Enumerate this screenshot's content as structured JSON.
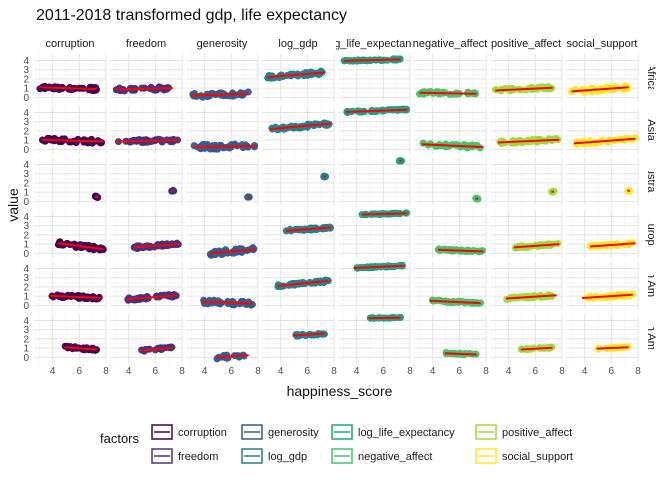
{
  "chart_data": {
    "type": "scatter",
    "title": "2011-2018 transformed gdp, life expectancy",
    "xlabel": "happiness_score",
    "ylabel": "value",
    "xlim": [
      2.6,
      8.0
    ],
    "ylim": [
      -0.5,
      4.7
    ],
    "x_ticks": [
      4,
      6,
      8
    ],
    "y_ticks": [
      0,
      1,
      2,
      3,
      4
    ],
    "grid": true,
    "facet_columns": [
      "corruption",
      "freedom",
      "generosity",
      "log_gdp",
      "log_life_expectancy",
      "negative_affect",
      "positive_affect",
      "social_support"
    ],
    "facet_rows": [
      "Africa",
      "Asia",
      "Australia",
      "Europe",
      "North America",
      "South America"
    ],
    "legend": {
      "title": "factors",
      "position": "bottom",
      "entries": [
        {
          "name": "corruption",
          "color": "#440154"
        },
        {
          "name": "freedom",
          "color": "#46337E"
        },
        {
          "name": "generosity",
          "color": "#365C8D"
        },
        {
          "name": "log_gdp",
          "color": "#277F8E"
        },
        {
          "name": "log_life_expectancy",
          "color": "#1FA187"
        },
        {
          "name": "negative_affect",
          "color": "#4AC16D"
        },
        {
          "name": "positive_affect",
          "color": "#A0DA39"
        },
        {
          "name": "social_support",
          "color": "#FDE725"
        }
      ]
    },
    "fit_line_color": "#FF0000",
    "panels": {
      "Africa": {
        "x_range": [
          3.0,
          7.3
        ],
        "corruption": {
          "a": [
            3.0,
            1.1
          ],
          "b": [
            7.3,
            0.9
          ],
          "spread": 0.18
        },
        "freedom": {
          "a": [
            3.0,
            0.85
          ],
          "b": [
            7.3,
            1.0
          ],
          "spread": 0.18
        },
        "generosity": {
          "a": [
            3.0,
            0.2
          ],
          "b": [
            7.3,
            0.4
          ],
          "spread": 0.22
        },
        "log_gdp": {
          "a": [
            3.0,
            2.2
          ],
          "b": [
            7.3,
            2.7
          ],
          "spread": 0.18
        },
        "log_life_expectancy": {
          "a": [
            3.0,
            3.95
          ],
          "b": [
            7.3,
            4.12
          ],
          "spread": 0.08
        },
        "negative_affect": {
          "a": [
            3.0,
            0.5
          ],
          "b": [
            7.3,
            0.4
          ],
          "spread": 0.15
        },
        "positive_affect": {
          "a": [
            3.0,
            0.75
          ],
          "b": [
            7.3,
            1.05
          ],
          "spread": 0.17
        },
        "social_support": {
          "a": [
            3.0,
            0.65
          ],
          "b": [
            7.3,
            1.1
          ],
          "spread": 0.22
        }
      },
      "Asia": {
        "x_range": [
          3.2,
          7.8
        ],
        "corruption": {
          "a": [
            3.2,
            1.05
          ],
          "b": [
            7.8,
            0.85
          ],
          "spread": 0.22
        },
        "freedom": {
          "a": [
            3.2,
            0.85
          ],
          "b": [
            7.8,
            1.0
          ],
          "spread": 0.16
        },
        "generosity": {
          "a": [
            3.2,
            0.25
          ],
          "b": [
            7.8,
            0.35
          ],
          "spread": 0.28
        },
        "log_gdp": {
          "a": [
            3.2,
            2.2
          ],
          "b": [
            7.8,
            2.8
          ],
          "spread": 0.18
        },
        "log_life_expectancy": {
          "a": [
            3.2,
            4.05
          ],
          "b": [
            7.8,
            4.3
          ],
          "spread": 0.08
        },
        "negative_affect": {
          "a": [
            3.2,
            0.55
          ],
          "b": [
            7.8,
            0.25
          ],
          "spread": 0.17
        },
        "positive_affect": {
          "a": [
            3.2,
            0.75
          ],
          "b": [
            7.8,
            1.05
          ],
          "spread": 0.16
        },
        "social_support": {
          "a": [
            3.2,
            0.65
          ],
          "b": [
            7.8,
            1.15
          ],
          "spread": 0.18
        }
      },
      "Australia": {
        "x_range": [
          7.2,
          7.4
        ],
        "corruption": {
          "a": [
            7.2,
            0.5
          ],
          "b": [
            7.4,
            0.5
          ],
          "spread": 0.08
        },
        "freedom": {
          "a": [
            7.2,
            1.15
          ],
          "b": [
            7.4,
            1.15
          ],
          "spread": 0.06
        },
        "generosity": {
          "a": [
            7.2,
            0.45
          ],
          "b": [
            7.4,
            0.45
          ],
          "spread": 0.06
        },
        "log_gdp": {
          "a": [
            7.2,
            2.7
          ],
          "b": [
            7.4,
            2.7
          ],
          "spread": 0.06
        },
        "log_life_expectancy": {
          "a": [
            7.2,
            4.4
          ],
          "b": [
            7.4,
            4.4
          ],
          "spread": 0.04
        },
        "negative_affect": {
          "a": [
            7.2,
            0.3
          ],
          "b": [
            7.4,
            0.3
          ],
          "spread": 0.05
        },
        "positive_affect": {
          "a": [
            7.2,
            1.05
          ],
          "b": [
            7.4,
            1.05
          ],
          "spread": 0.05
        },
        "social_support": {
          "a": [
            7.2,
            1.15
          ],
          "b": [
            7.4,
            1.15
          ],
          "spread": 0.05
        }
      },
      "Europe": {
        "x_range": [
          4.4,
          7.8
        ],
        "corruption": {
          "a": [
            4.4,
            1.1
          ],
          "b": [
            7.8,
            0.45
          ],
          "spread": 0.2
        },
        "freedom": {
          "a": [
            4.4,
            0.65
          ],
          "b": [
            7.8,
            1.0
          ],
          "spread": 0.16
        },
        "generosity": {
          "a": [
            4.4,
            0.0
          ],
          "b": [
            7.8,
            0.45
          ],
          "spread": 0.25
        },
        "log_gdp": {
          "a": [
            4.4,
            2.45
          ],
          "b": [
            7.8,
            2.8
          ],
          "spread": 0.12
        },
        "log_life_expectancy": {
          "a": [
            4.4,
            4.2
          ],
          "b": [
            7.8,
            4.35
          ],
          "spread": 0.05
        },
        "negative_affect": {
          "a": [
            4.4,
            0.4
          ],
          "b": [
            7.8,
            0.2
          ],
          "spread": 0.1
        },
        "positive_affect": {
          "a": [
            4.4,
            0.65
          ],
          "b": [
            7.8,
            1.0
          ],
          "spread": 0.12
        },
        "social_support": {
          "a": [
            4.4,
            0.75
          ],
          "b": [
            7.8,
            1.1
          ],
          "spread": 0.1
        }
      },
      "North America": {
        "x_range": [
          3.8,
          7.6
        ],
        "corruption": {
          "a": [
            3.8,
            1.05
          ],
          "b": [
            7.6,
            0.8
          ],
          "spread": 0.16
        },
        "freedom": {
          "a": [
            3.8,
            0.65
          ],
          "b": [
            7.6,
            1.1
          ],
          "spread": 0.16
        },
        "generosity": {
          "a": [
            3.8,
            0.4
          ],
          "b": [
            7.6,
            0.2
          ],
          "spread": 0.22
        },
        "log_gdp": {
          "a": [
            3.8,
            2.1
          ],
          "b": [
            7.6,
            2.65
          ],
          "spread": 0.14
        },
        "log_life_expectancy": {
          "a": [
            3.8,
            4.05
          ],
          "b": [
            7.6,
            4.3
          ],
          "spread": 0.07
        },
        "negative_affect": {
          "a": [
            3.8,
            0.5
          ],
          "b": [
            7.6,
            0.25
          ],
          "spread": 0.11
        },
        "positive_affect": {
          "a": [
            3.8,
            0.75
          ],
          "b": [
            7.6,
            1.1
          ],
          "spread": 0.12
        },
        "social_support": {
          "a": [
            3.8,
            0.8
          ],
          "b": [
            7.6,
            1.15
          ],
          "spread": 0.12
        }
      },
      "South America": {
        "x_range": [
          4.9,
          7.3
        ],
        "corruption": {
          "a": [
            4.9,
            1.1
          ],
          "b": [
            7.3,
            0.85
          ],
          "spread": 0.14
        },
        "freedom": {
          "a": [
            4.9,
            0.7
          ],
          "b": [
            7.3,
            1.05
          ],
          "spread": 0.14
        },
        "generosity": {
          "a": [
            4.9,
            0.0
          ],
          "b": [
            7.3,
            0.25
          ],
          "spread": 0.18
        },
        "log_gdp": {
          "a": [
            4.9,
            2.35
          ],
          "b": [
            7.3,
            2.6
          ],
          "spread": 0.1
        },
        "log_life_expectancy": {
          "a": [
            4.9,
            4.25
          ],
          "b": [
            7.3,
            4.3
          ],
          "spread": 0.05
        },
        "negative_affect": {
          "a": [
            4.9,
            0.45
          ],
          "b": [
            7.3,
            0.3
          ],
          "spread": 0.09
        },
        "positive_affect": {
          "a": [
            4.9,
            0.85
          ],
          "b": [
            7.3,
            1.05
          ],
          "spread": 0.09
        },
        "social_support": {
          "a": [
            4.9,
            0.95
          ],
          "b": [
            7.3,
            1.1
          ],
          "spread": 0.07
        }
      }
    }
  }
}
